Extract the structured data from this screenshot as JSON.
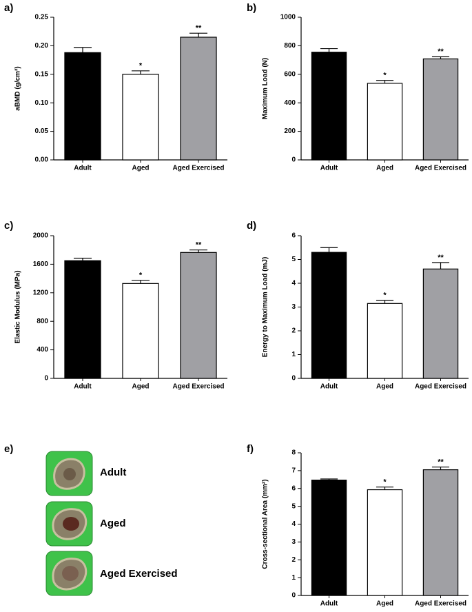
{
  "chart_data": [
    {
      "type": "bar",
      "panel_label": "a)",
      "y_label": "aBMD (g/cm²)",
      "categories": [
        "Adult",
        "Aged",
        "Aged Exercised"
      ],
      "values": [
        0.188,
        0.15,
        0.215
      ],
      "errors": [
        0.009,
        0.006,
        0.007
      ],
      "annotations": [
        null,
        "*",
        "**"
      ],
      "colors": [
        "#000000",
        "#ffffff",
        "#a0a0a4"
      ],
      "ylim": [
        0,
        0.25
      ],
      "yticks": [
        {
          "value": 0,
          "label": "0.00"
        },
        {
          "value": 0.05,
          "label": "0.05"
        },
        {
          "value": 0.1,
          "label": "0.10"
        },
        {
          "value": 0.15,
          "label": "0.15"
        },
        {
          "value": 0.2,
          "label": "0.20"
        },
        {
          "value": 0.25,
          "label": "0.25"
        }
      ]
    },
    {
      "type": "bar",
      "panel_label": "b)",
      "y_label": "Maximum Load (N)",
      "categories": [
        "Adult",
        "Aged",
        "Aged Exercised"
      ],
      "values": [
        755,
        537,
        708
      ],
      "errors": [
        25,
        20,
        15
      ],
      "annotations": [
        null,
        "*",
        "**"
      ],
      "colors": [
        "#000000",
        "#ffffff",
        "#a0a0a4"
      ],
      "ylim": [
        0,
        1000
      ],
      "yticks": [
        0,
        200,
        400,
        600,
        800,
        1000
      ]
    },
    {
      "type": "bar",
      "panel_label": "c)",
      "y_label": "Elastic Modulus (MPa)",
      "categories": [
        "Adult",
        "Aged",
        "Aged Exercised"
      ],
      "values": [
        1650,
        1330,
        1765
      ],
      "errors": [
        35,
        45,
        35
      ],
      "annotations": [
        null,
        "*",
        "**"
      ],
      "colors": [
        "#000000",
        "#ffffff",
        "#a0a0a4"
      ],
      "ylim": [
        0,
        2000
      ],
      "yticks": [
        0,
        400,
        800,
        1200,
        1600,
        2000
      ]
    },
    {
      "type": "bar",
      "panel_label": "d)",
      "y_label": "Energy to Maximum Load  (mJ)",
      "categories": [
        "Adult",
        "Aged",
        "Aged Exercised"
      ],
      "values": [
        5.3,
        3.15,
        4.6
      ],
      "errors": [
        0.2,
        0.13,
        0.27
      ],
      "annotations": [
        null,
        "*",
        "**"
      ],
      "colors": [
        "#000000",
        "#ffffff",
        "#a0a0a4"
      ],
      "ylim": [
        0,
        6
      ],
      "yticks": [
        0,
        1,
        2,
        3,
        4,
        5,
        6
      ]
    },
    {
      "type": "bar",
      "panel_label": "f)",
      "y_label": "Cross-sectional Area (mm²)",
      "categories": [
        "Adult",
        "Aged",
        "Aged Exercised"
      ],
      "values": [
        6.47,
        5.93,
        7.05
      ],
      "errors": [
        0.06,
        0.15,
        0.15
      ],
      "annotations": [
        null,
        "*",
        "**"
      ],
      "colors": [
        "#000000",
        "#ffffff",
        "#a0a0a4"
      ],
      "ylim": [
        0,
        8
      ],
      "yticks": [
        0,
        1,
        2,
        3,
        4,
        5,
        6,
        7,
        8
      ]
    }
  ],
  "panel_e": {
    "panel_label": "e)",
    "labels": [
      "Adult",
      "Aged",
      "Aged Exercised"
    ]
  }
}
